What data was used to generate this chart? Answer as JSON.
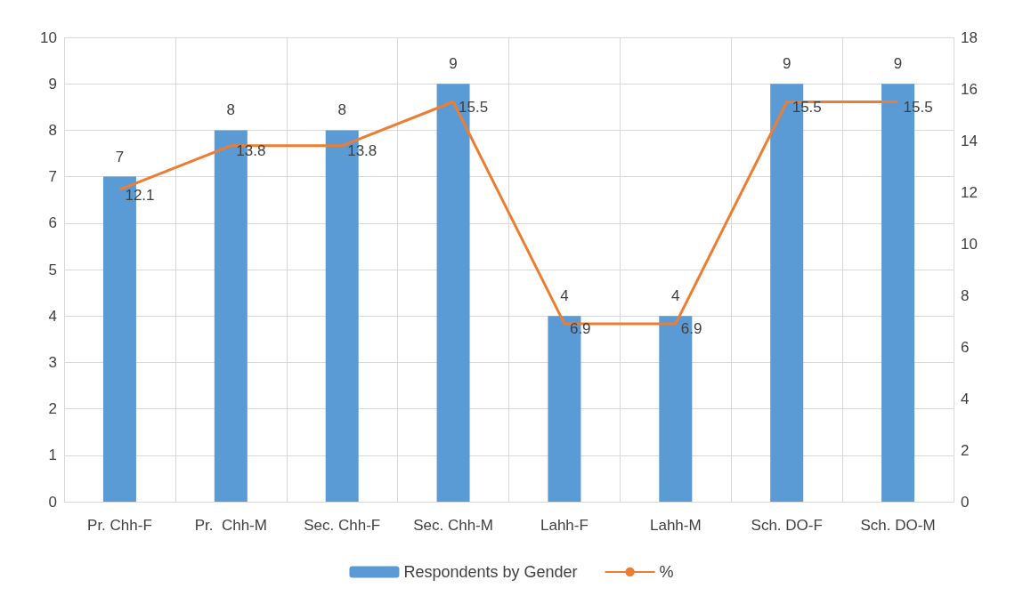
{
  "chart_data": {
    "type": "bar",
    "categories": [
      "Pr. Chh-F",
      "Pr.  Chh-M",
      "Sec. Chh-F",
      "Sec. Chh-M",
      "Lahh-F",
      "Lahh-M",
      "Sch. DO-F",
      "Sch. DO-M"
    ],
    "series": [
      {
        "name": "Respondents by Gender",
        "color": "#5b9bd5",
        "values": [
          7,
          8,
          8,
          9,
          4,
          4,
          9,
          9
        ]
      },
      {
        "name": "%",
        "type": "line",
        "axis": "y2",
        "color": "#ed7d31",
        "values": [
          12.1,
          13.8,
          13.8,
          15.5,
          6.9,
          6.9,
          15.5,
          15.5
        ]
      }
    ],
    "ylim": [
      0,
      10
    ],
    "yticks": [
      0,
      1,
      2,
      3,
      4,
      5,
      6,
      7,
      8,
      9,
      10
    ],
    "y2lim": [
      0,
      18
    ],
    "y2ticks": [
      0,
      2,
      4,
      6,
      8,
      10,
      12,
      14,
      16,
      18
    ],
    "grid": true,
    "legend": "bottom",
    "data_labels": true,
    "marker": "none"
  }
}
